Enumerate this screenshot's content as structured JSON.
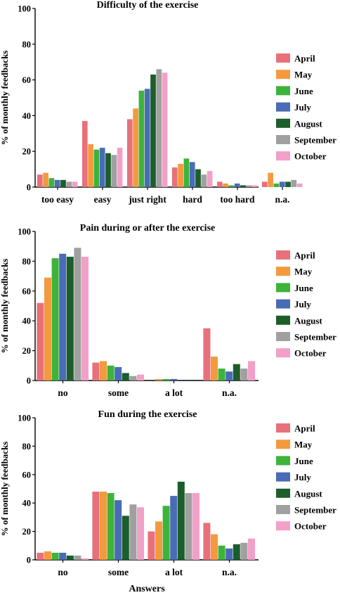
{
  "chart_data": [
    {
      "type": "bar",
      "title": "Difficulty of the exercise",
      "ylabel": "% of monthly feedbacks",
      "xlabel": "",
      "ylim": [
        0,
        100
      ],
      "yticks": [
        "0",
        "20",
        "40",
        "60",
        "80",
        "100"
      ],
      "categories": [
        "too easy",
        "easy",
        "just right",
        "hard",
        "too hard",
        "n.a."
      ],
      "legend_position": "right",
      "series": [
        {
          "name": "April",
          "color": "#e8707a",
          "values": [
            7,
            37,
            38,
            11,
            3,
            3
          ]
        },
        {
          "name": "May",
          "color": "#f39a3e",
          "values": [
            8,
            24,
            44,
            13,
            2,
            8
          ]
        },
        {
          "name": "June",
          "color": "#3db33a",
          "values": [
            5,
            21,
            54,
            16,
            1,
            2
          ]
        },
        {
          "name": "July",
          "color": "#4a6bb5",
          "values": [
            4,
            22,
            55,
            14,
            2,
            3
          ]
        },
        {
          "name": "August",
          "color": "#1b5e2a",
          "values": [
            4,
            19,
            63,
            10,
            1,
            3
          ]
        },
        {
          "name": "September",
          "color": "#a0a0a0",
          "values": [
            3,
            18,
            66,
            7,
            1,
            4
          ]
        },
        {
          "name": "October",
          "color": "#f2a0c8",
          "values": [
            3,
            22,
            64,
            9,
            1,
            2
          ]
        }
      ]
    },
    {
      "type": "bar",
      "title": "Pain during or after the exercise",
      "ylabel": "% of monthly feedbacks",
      "xlabel": "",
      "ylim": [
        0,
        100
      ],
      "yticks": [
        "0",
        "20",
        "40",
        "60",
        "80",
        "100"
      ],
      "categories": [
        "no",
        "some",
        "a lot",
        "n.a."
      ],
      "legend_position": "right",
      "series": [
        {
          "name": "April",
          "color": "#e8707a",
          "values": [
            52,
            12,
            0,
            35
          ]
        },
        {
          "name": "May",
          "color": "#f39a3e",
          "values": [
            69,
            13,
            1,
            16
          ]
        },
        {
          "name": "June",
          "color": "#3db33a",
          "values": [
            82,
            10,
            1,
            8
          ]
        },
        {
          "name": "July",
          "color": "#4a6bb5",
          "values": [
            85,
            9,
            1,
            6
          ]
        },
        {
          "name": "August",
          "color": "#1b5e2a",
          "values": [
            83,
            5,
            0,
            11
          ]
        },
        {
          "name": "September",
          "color": "#a0a0a0",
          "values": [
            89,
            3,
            0,
            8
          ]
        },
        {
          "name": "October",
          "color": "#f2a0c8",
          "values": [
            83,
            4,
            0,
            13
          ]
        }
      ]
    },
    {
      "type": "bar",
      "title": "Fun during the exercise",
      "ylabel": "% of monthly feedbacks",
      "xlabel": "Answers",
      "ylim": [
        0,
        100
      ],
      "yticks": [
        "0",
        "20",
        "40",
        "60",
        "80",
        "100"
      ],
      "categories": [
        "no",
        "some",
        "a lot",
        "n.a."
      ],
      "legend_position": "right",
      "series": [
        {
          "name": "April",
          "color": "#e8707a",
          "values": [
            5,
            48,
            20,
            26
          ]
        },
        {
          "name": "May",
          "color": "#f39a3e",
          "values": [
            6,
            48,
            27,
            18
          ]
        },
        {
          "name": "June",
          "color": "#3db33a",
          "values": [
            5,
            47,
            38,
            10
          ]
        },
        {
          "name": "July",
          "color": "#4a6bb5",
          "values": [
            5,
            42,
            45,
            8
          ]
        },
        {
          "name": "August",
          "color": "#1b5e2a",
          "values": [
            3,
            31,
            55,
            11
          ]
        },
        {
          "name": "September",
          "color": "#a0a0a0",
          "values": [
            3,
            39,
            47,
            12
          ]
        },
        {
          "name": "October",
          "color": "#f2a0c8",
          "values": [
            1,
            37,
            47,
            15
          ]
        }
      ]
    }
  ]
}
